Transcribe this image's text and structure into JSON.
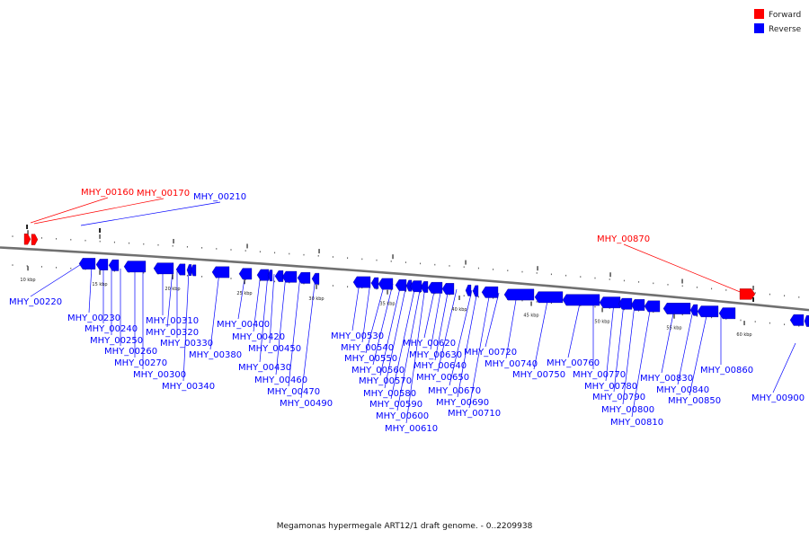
{
  "caption": "Megamonas hypermegale ART12/1 draft genome. - 0..2209938",
  "legend": [
    {
      "label": "Forward",
      "color": "#ff0000"
    },
    {
      "label": "Reverse",
      "color": "#0000ff"
    }
  ],
  "colors": {
    "forward": "#ff0000",
    "reverse": "#0000ff",
    "backbone": "#707070",
    "ticks": "#333333"
  },
  "tick_labels": [
    "10 kbp",
    "15 kbp",
    "20 kbp",
    "25 kbp",
    "30 kbp",
    "35 kbp",
    "40 kbp",
    "45 kbp",
    "50 kbp",
    "55 kbp",
    "60 kbp"
  ],
  "genes": [
    {
      "id": "MHY_00160",
      "strand": "forward"
    },
    {
      "id": "MHY_00170",
      "strand": "forward"
    },
    {
      "id": "MHY_00210",
      "strand": "reverse"
    },
    {
      "id": "MHY_00220",
      "strand": "reverse"
    },
    {
      "id": "MHY_00230",
      "strand": "reverse"
    },
    {
      "id": "MHY_00240",
      "strand": "reverse"
    },
    {
      "id": "MHY_00250",
      "strand": "reverse"
    },
    {
      "id": "MHY_00260",
      "strand": "reverse"
    },
    {
      "id": "MHY_00270",
      "strand": "reverse"
    },
    {
      "id": "MHY_00300",
      "strand": "reverse"
    },
    {
      "id": "MHY_00310",
      "strand": "reverse"
    },
    {
      "id": "MHY_00320",
      "strand": "reverse"
    },
    {
      "id": "MHY_00330",
      "strand": "reverse"
    },
    {
      "id": "MHY_00340",
      "strand": "reverse"
    },
    {
      "id": "MHY_00380",
      "strand": "reverse"
    },
    {
      "id": "MHY_00400",
      "strand": "reverse"
    },
    {
      "id": "MHY_00420",
      "strand": "reverse"
    },
    {
      "id": "MHY_00430",
      "strand": "reverse"
    },
    {
      "id": "MHY_00450",
      "strand": "reverse"
    },
    {
      "id": "MHY_00460",
      "strand": "reverse"
    },
    {
      "id": "MHY_00470",
      "strand": "reverse"
    },
    {
      "id": "MHY_00490",
      "strand": "reverse"
    },
    {
      "id": "MHY_00530",
      "strand": "reverse"
    },
    {
      "id": "MHY_00540",
      "strand": "reverse"
    },
    {
      "id": "MHY_00550",
      "strand": "reverse"
    },
    {
      "id": "MHY_00560",
      "strand": "reverse"
    },
    {
      "id": "MHY_00570",
      "strand": "reverse"
    },
    {
      "id": "MHY_00580",
      "strand": "reverse"
    },
    {
      "id": "MHY_00590",
      "strand": "reverse"
    },
    {
      "id": "MHY_00600",
      "strand": "reverse"
    },
    {
      "id": "MHY_00610",
      "strand": "reverse"
    },
    {
      "id": "MHY_00620",
      "strand": "reverse"
    },
    {
      "id": "MHY_00630",
      "strand": "reverse"
    },
    {
      "id": "MHY_00640",
      "strand": "reverse"
    },
    {
      "id": "MHY_00650",
      "strand": "reverse"
    },
    {
      "id": "MHY_00670",
      "strand": "reverse"
    },
    {
      "id": "MHY_00690",
      "strand": "reverse"
    },
    {
      "id": "MHY_00710",
      "strand": "reverse"
    },
    {
      "id": "MHY_00720",
      "strand": "reverse"
    },
    {
      "id": "MHY_00740",
      "strand": "reverse"
    },
    {
      "id": "MHY_00750",
      "strand": "reverse"
    },
    {
      "id": "MHY_00760",
      "strand": "reverse"
    },
    {
      "id": "MHY_00770",
      "strand": "reverse"
    },
    {
      "id": "MHY_00780",
      "strand": "reverse"
    },
    {
      "id": "MHY_00790",
      "strand": "reverse"
    },
    {
      "id": "MHY_00800",
      "strand": "reverse"
    },
    {
      "id": "MHY_00810",
      "strand": "reverse"
    },
    {
      "id": "MHY_00830",
      "strand": "reverse"
    },
    {
      "id": "MHY_00840",
      "strand": "reverse"
    },
    {
      "id": "MHY_00850",
      "strand": "reverse"
    },
    {
      "id": "MHY_00860",
      "strand": "reverse"
    },
    {
      "id": "MHY_00870",
      "strand": "forward"
    },
    {
      "id": "MHY_00900",
      "strand": "reverse"
    }
  ]
}
